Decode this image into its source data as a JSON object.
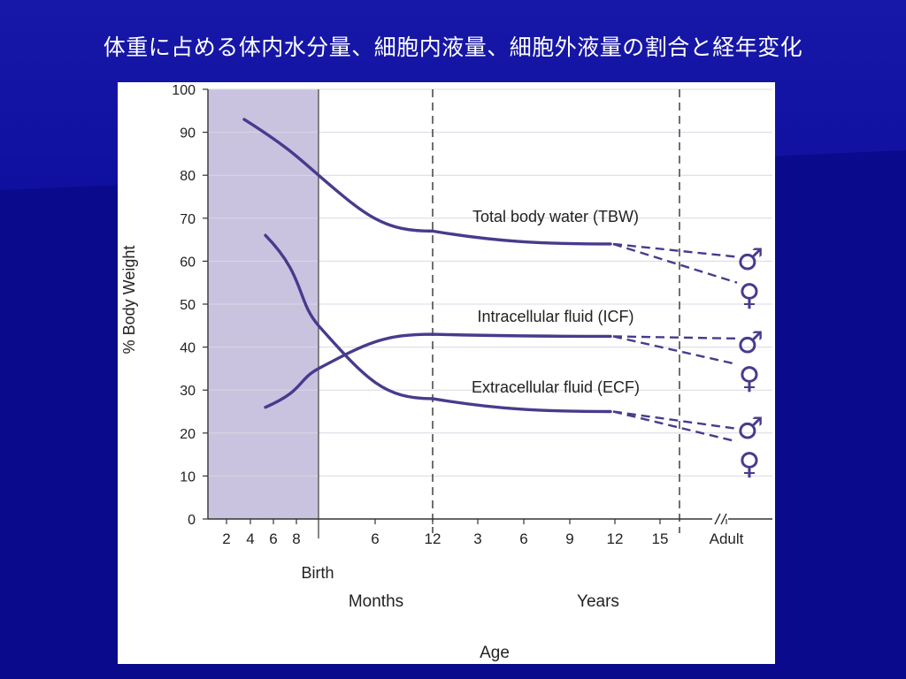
{
  "slide": {
    "title": "体重に占める体内水分量、細胞内液量、細胞外液量の割合と経年変化"
  },
  "colors": {
    "background": "#0a0a8c",
    "curve": "#4a3a8c",
    "prenatal_shade": "#c9c3e0",
    "title_text": "#ffffff"
  },
  "chart_data": {
    "type": "line",
    "ylabel": "% Body Weight",
    "xlabel": "Age",
    "ylim": [
      0,
      100
    ],
    "yticks": [
      0,
      10,
      20,
      30,
      40,
      50,
      60,
      70,
      80,
      90,
      100
    ],
    "grid": true,
    "x_groups": [
      {
        "name": "",
        "ticks": [
          "2",
          "4",
          "6",
          "8"
        ]
      },
      {
        "name": "Months",
        "ticks": [
          "6",
          "12"
        ]
      },
      {
        "name": "Years",
        "ticks": [
          "3",
          "6",
          "9",
          "12",
          "15"
        ]
      },
      {
        "name": "",
        "ticks": [
          "Adult"
        ]
      }
    ],
    "birth_label": "Birth",
    "months_label": "Months",
    "years_label": "Years",
    "adult_label": "Adult",
    "series": [
      {
        "name": "Total body water (TBW)",
        "x": [
          "4",
          "Birth",
          "12 months",
          "12 years"
        ],
        "values": [
          93,
          80,
          67,
          64
        ],
        "adult": {
          "male": 61,
          "female": 55
        }
      },
      {
        "name": "Intracellular fluid (ICF)",
        "x": [
          "6",
          "Birth",
          "12 months",
          "12 years"
        ],
        "values": [
          26,
          35,
          43,
          42.5
        ],
        "adult": {
          "male": 42,
          "female": 36
        }
      },
      {
        "name": "Extracellular fluid (ECF)",
        "x": [
          "6",
          "Birth",
          "12 months",
          "12 years"
        ],
        "values": [
          66,
          45,
          28,
          25
        ],
        "adult": {
          "male": 21,
          "female": 18
        }
      }
    ],
    "symbols": {
      "male": "♂",
      "female": "♀"
    }
  }
}
